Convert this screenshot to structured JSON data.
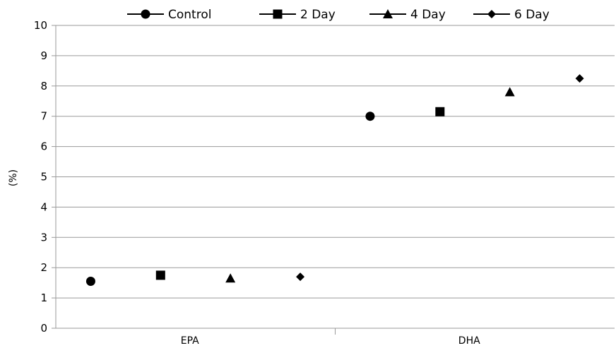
{
  "chart_data": {
    "type": "scatter",
    "categories": [
      "EPA",
      "DHA"
    ],
    "series": [
      {
        "name": "Control",
        "marker": "circle",
        "values": [
          1.55,
          7.0
        ]
      },
      {
        "name": "2 Day",
        "marker": "square",
        "values": [
          1.75,
          7.15
        ]
      },
      {
        "name": "4 Day",
        "marker": "triangle",
        "values": [
          1.65,
          7.8
        ]
      },
      {
        "name": "6 Day",
        "marker": "diamond",
        "values": [
          1.7,
          8.25
        ]
      }
    ],
    "ylabel": "(%)",
    "ylim": [
      0,
      10
    ],
    "yticks": [
      "0",
      "1",
      "2",
      "3",
      "4",
      "5",
      "6",
      "7",
      "8",
      "9",
      "10"
    ],
    "grid": true,
    "legend_position": "top",
    "colors": {
      "marker": "#000000",
      "grid": "#9a9a9a"
    }
  }
}
